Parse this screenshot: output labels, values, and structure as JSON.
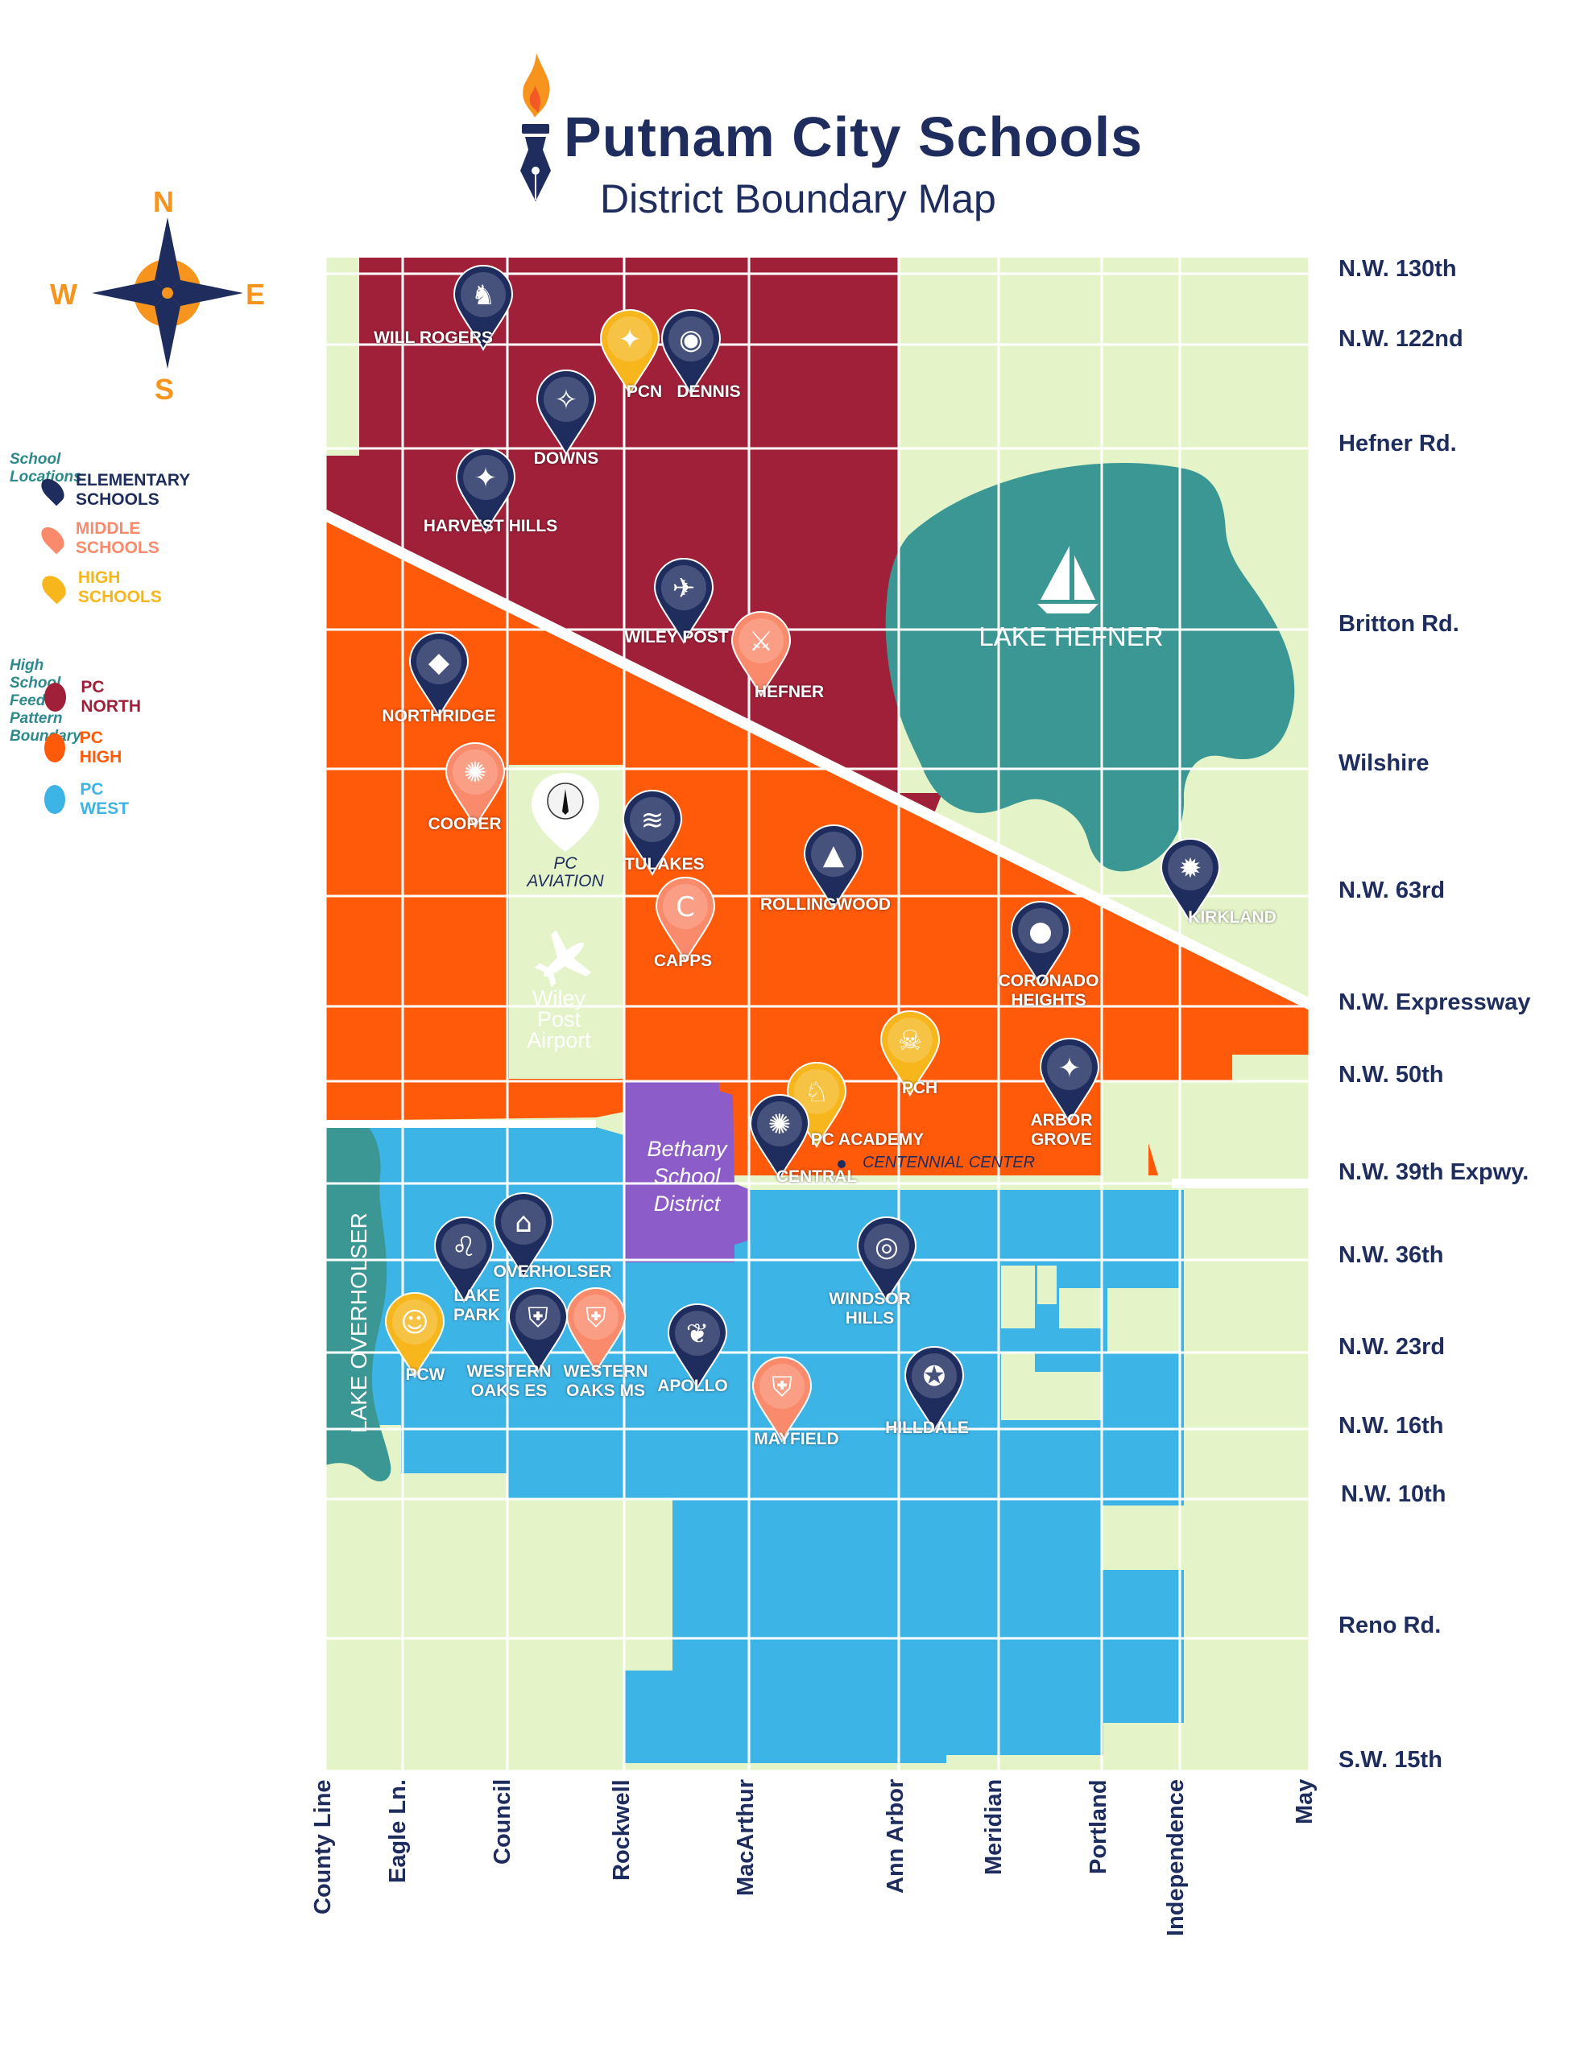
{
  "header": {
    "title": "Putnam City Schools",
    "subtitle": "District Boundary Map"
  },
  "compass": {
    "n": "N",
    "s": "S",
    "e": "E",
    "w": "W"
  },
  "legend": {
    "locations_heading": "School Locations",
    "elementary": "ELEMENTARY SCHOOLS",
    "middle": "MIDDLE SCHOOLS",
    "high": "HIGH SCHOOLS",
    "feeder_heading": "High School Feeder Pattern Boundary",
    "pc_north": "PC NORTH",
    "pc_high": "PC HIGH",
    "pc_west": "PC WEST"
  },
  "colors": {
    "navy": "#1e2c5e",
    "pc_north": "#a0203a",
    "pc_high": "#ff5a0a",
    "pc_west": "#3db4e6",
    "background_green": "#e4f4c8",
    "lake": "#3a9794",
    "bethany": "#8c5cc8",
    "middle_pin": "#f98a6b",
    "high_pin": "#f6b61c",
    "orange_accent": "#f7941d"
  },
  "streets_east_west": [
    "N.W. 130th",
    "N.W. 122nd",
    "Hefner Rd.",
    "Britton Rd.",
    "Wilshire",
    "N.W. 63rd",
    "N.W. Expressway",
    "N.W. 50th",
    "N.W. 39th Expwy.",
    "N.W. 36th",
    "N.W. 23rd",
    "N.W. 16th",
    "N.W. 10th",
    "Reno Rd.",
    "S.W. 15th"
  ],
  "streets_north_south": [
    "County Line",
    "Eagle Ln.",
    "Council",
    "Rockwell",
    "MacArthur",
    "Ann Arbor",
    "Meridian",
    "Portland",
    "Independence",
    "May"
  ],
  "places": {
    "lake_hefner": "LAKE HEFNER",
    "lake_overholser": "LAKE OVERHOLSER",
    "bethany": "Bethany\nSchool\nDistrict",
    "wiley_post": "Wiley\nPost\nAirport",
    "pc_aviation": "PC\nAVIATION",
    "centennial": "CENTENNIAL CENTER"
  },
  "schools": [
    {
      "name": "WILL ROGERS",
      "type": "elementary",
      "glyph": "♞"
    },
    {
      "name": "PCN",
      "type": "high",
      "glyph": "✦"
    },
    {
      "name": "DENNIS",
      "type": "elementary",
      "glyph": "◉"
    },
    {
      "name": "DOWNS",
      "type": "elementary",
      "glyph": "✧"
    },
    {
      "name": "HARVEST HILLS",
      "type": "elementary",
      "glyph": "✦"
    },
    {
      "name": "WILEY POST",
      "type": "elementary",
      "glyph": "✈"
    },
    {
      "name": "HEFNER",
      "type": "middle",
      "glyph": "⚔"
    },
    {
      "name": "NORTHRIDGE",
      "type": "elementary",
      "glyph": "◆"
    },
    {
      "name": "COOPER",
      "type": "middle",
      "glyph": "✺"
    },
    {
      "name": "TULAKES",
      "type": "elementary",
      "glyph": "≋"
    },
    {
      "name": "ROLLINGWOOD",
      "type": "elementary",
      "glyph": "▲"
    },
    {
      "name": "CAPPS",
      "type": "middle",
      "glyph": "C"
    },
    {
      "name": "KIRKLAND",
      "type": "elementary",
      "glyph": "✹"
    },
    {
      "name": "CORONADO\nHEIGHTS",
      "type": "elementary",
      "glyph": "●"
    },
    {
      "name": "PCH",
      "type": "high",
      "glyph": "☠"
    },
    {
      "name": "PC ACADEMY",
      "type": "high",
      "glyph": "♘"
    },
    {
      "name": "ARBOR\nGROVE",
      "type": "elementary",
      "glyph": "✦"
    },
    {
      "name": "CENTRAL",
      "type": "elementary",
      "glyph": "✺"
    },
    {
      "name": "OVERHOLSER",
      "type": "elementary",
      "glyph": "⌂"
    },
    {
      "name": "LAKE\nPARK",
      "type": "elementary",
      "glyph": "♌"
    },
    {
      "name": "WINDSOR\nHILLS",
      "type": "elementary",
      "glyph": "◎"
    },
    {
      "name": "PCW",
      "type": "high",
      "glyph": "☺"
    },
    {
      "name": "WESTERN\nOAKS ES",
      "type": "elementary",
      "glyph": "⛨"
    },
    {
      "name": "WESTERN\nOAKS MS",
      "type": "middle",
      "glyph": "⛨"
    },
    {
      "name": "APOLLO",
      "type": "elementary",
      "glyph": "❦"
    },
    {
      "name": "MAYFIELD",
      "type": "middle",
      "glyph": "⛨"
    },
    {
      "name": "HILLDALE",
      "type": "elementary",
      "glyph": "✪"
    }
  ]
}
